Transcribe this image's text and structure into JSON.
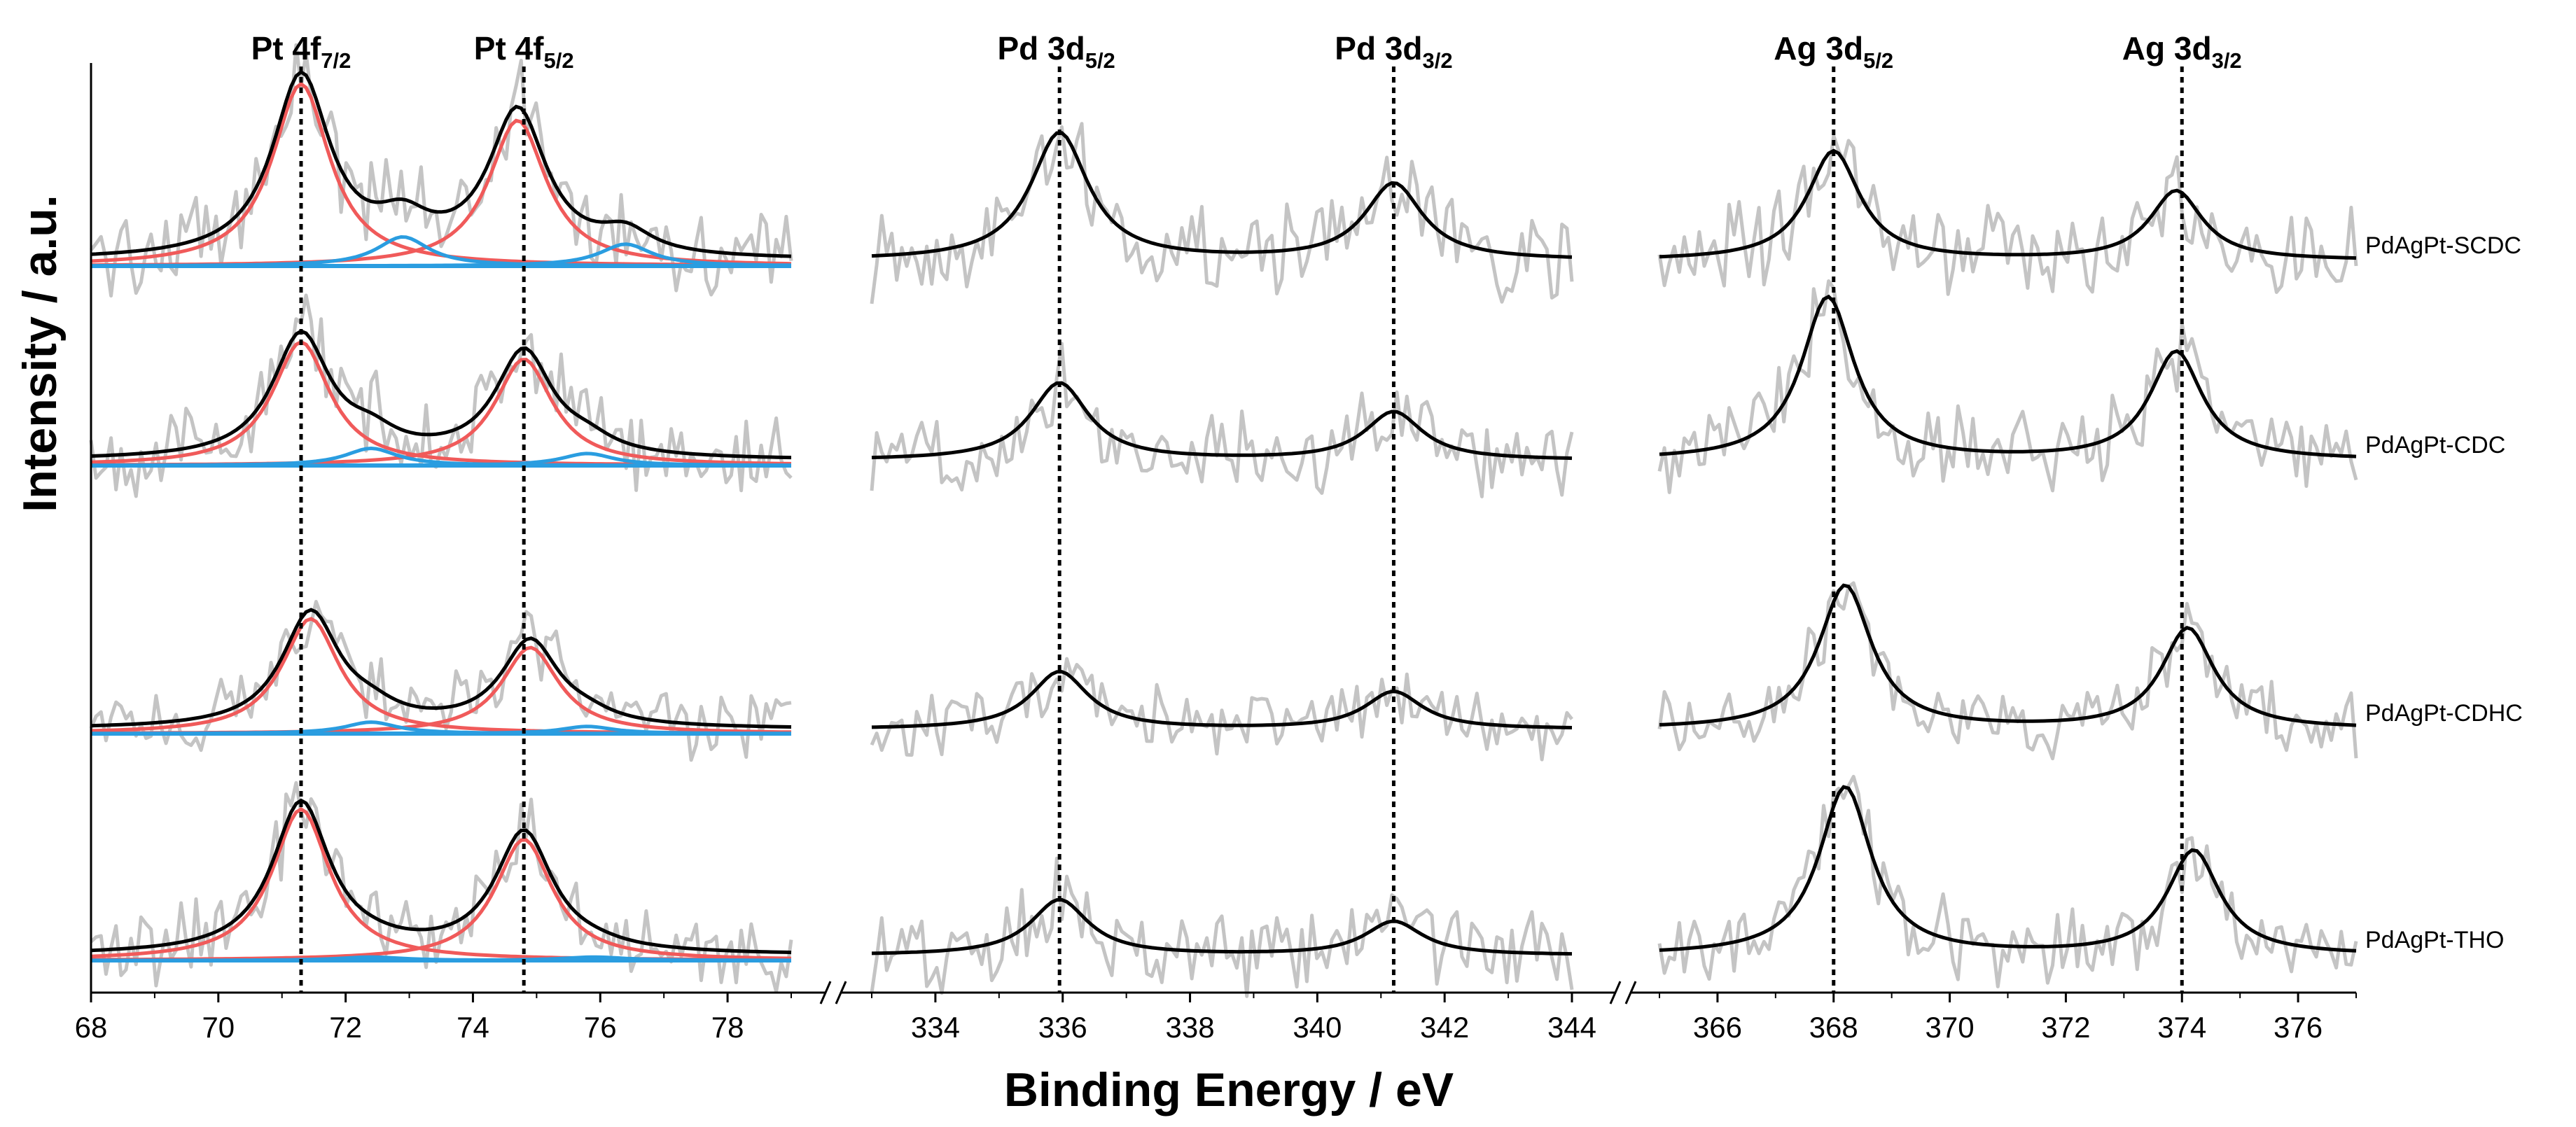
{
  "chart_data": {
    "type": "line",
    "title": "",
    "xlabel": "Binding Energy / eV",
    "ylabel": "Intensity / a.u.",
    "colors": {
      "raw": "#c4c4c4",
      "envelope": "#000000",
      "main_component": "#f05a5a",
      "minor_component": "#2a9de0",
      "baseline": "#2a9de0"
    },
    "samples": [
      {
        "name": "PdAgPt-SCDC"
      },
      {
        "name": "PdAgPt-CDC"
      },
      {
        "name": "PdAgPt-CDHC"
      },
      {
        "name": "PdAgPt-THO"
      }
    ],
    "panels": [
      {
        "id": "pt4f",
        "xlim": [
          68,
          79
        ],
        "xticks": [
          68,
          70,
          72,
          74,
          76,
          78
        ],
        "peak_labels": [
          {
            "main": "Pt 4f",
            "sub": "7/2",
            "x": 71.3
          },
          {
            "main": "Pt 4f",
            "sub": "5/2",
            "x": 74.8
          }
        ],
        "reference_lines": [
          71.3,
          74.8
        ],
        "fit_components": true,
        "spectra": [
          {
            "sample": "PdAgPt-SCDC",
            "peaks": [
              {
                "center": 71.3,
                "height": 1.0,
                "width": 0.55,
                "type": "main"
              },
              {
                "center": 74.7,
                "height": 0.8,
                "width": 0.55,
                "type": "main"
              },
              {
                "center": 72.9,
                "height": 0.16,
                "width": 0.5,
                "type": "minor"
              },
              {
                "center": 76.4,
                "height": 0.12,
                "width": 0.5,
                "type": "minor"
              }
            ]
          },
          {
            "sample": "PdAgPt-CDC",
            "peaks": [
              {
                "center": 71.3,
                "height": 0.72,
                "width": 0.55,
                "type": "main"
              },
              {
                "center": 74.8,
                "height": 0.62,
                "width": 0.55,
                "type": "main"
              },
              {
                "center": 72.4,
                "height": 0.1,
                "width": 0.5,
                "type": "minor"
              },
              {
                "center": 75.8,
                "height": 0.07,
                "width": 0.5,
                "type": "minor"
              }
            ]
          },
          {
            "sample": "PdAgPt-CDHC",
            "peaks": [
              {
                "center": 71.45,
                "height": 0.8,
                "width": 0.55,
                "type": "main"
              },
              {
                "center": 74.9,
                "height": 0.6,
                "width": 0.55,
                "type": "main"
              },
              {
                "center": 72.4,
                "height": 0.08,
                "width": 0.5,
                "type": "minor"
              },
              {
                "center": 75.8,
                "height": 0.05,
                "width": 0.5,
                "type": "minor"
              }
            ]
          },
          {
            "sample": "PdAgPt-THO",
            "peaks": [
              {
                "center": 71.3,
                "height": 0.9,
                "width": 0.55,
                "type": "main"
              },
              {
                "center": 74.8,
                "height": 0.72,
                "width": 0.55,
                "type": "main"
              },
              {
                "center": 72.4,
                "height": 0.02,
                "width": 0.6,
                "type": "minor"
              },
              {
                "center": 75.9,
                "height": 0.02,
                "width": 0.6,
                "type": "minor"
              }
            ]
          }
        ]
      },
      {
        "id": "pd3d",
        "xlim": [
          333,
          344
        ],
        "xticks": [
          334,
          336,
          338,
          340,
          342,
          344
        ],
        "peak_labels": [
          {
            "main": "Pd 3d",
            "sub": "5/2",
            "x": 335.9
          },
          {
            "main": "Pd 3d",
            "sub": "3/2",
            "x": 341.2
          }
        ],
        "reference_lines": [
          335.95,
          341.2
        ],
        "fit_components": false,
        "spectra": [
          {
            "sample": "PdAgPt-SCDC",
            "peaks": [
              {
                "center": 335.95,
                "height": 0.7,
                "width": 0.55
              },
              {
                "center": 341.2,
                "height": 0.42,
                "width": 0.55
              }
            ]
          },
          {
            "sample": "PdAgPt-CDC",
            "peaks": [
              {
                "center": 335.95,
                "height": 0.45,
                "width": 0.55
              },
              {
                "center": 341.2,
                "height": 0.28,
                "width": 0.55
              }
            ]
          },
          {
            "sample": "PdAgPt-CDHC",
            "peaks": [
              {
                "center": 335.95,
                "height": 0.4,
                "width": 0.55
              },
              {
                "center": 341.2,
                "height": 0.26,
                "width": 0.55
              }
            ]
          },
          {
            "sample": "PdAgPt-THO",
            "peaks": [
              {
                "center": 335.95,
                "height": 0.33,
                "width": 0.55
              },
              {
                "center": 341.2,
                "height": 0.2,
                "width": 0.55
              }
            ]
          }
        ]
      },
      {
        "id": "ag3d",
        "xlim": [
          365,
          377
        ],
        "xticks": [
          366,
          368,
          370,
          372,
          374,
          376
        ],
        "peak_labels": [
          {
            "main": "Ag 3d",
            "sub": "5/2",
            "x": 368.0
          },
          {
            "main": "Ag 3d",
            "sub": "3/2",
            "x": 374.0
          }
        ],
        "reference_lines": [
          368.0,
          374.0
        ],
        "fit_components": false,
        "spectra": [
          {
            "sample": "PdAgPt-SCDC",
            "peaks": [
              {
                "center": 368.0,
                "height": 0.6,
                "width": 0.55
              },
              {
                "center": 373.9,
                "height": 0.38,
                "width": 0.55
              }
            ]
          },
          {
            "sample": "PdAgPt-CDC",
            "peaks": [
              {
                "center": 367.9,
                "height": 0.95,
                "width": 0.55
              },
              {
                "center": 373.9,
                "height": 0.63,
                "width": 0.55
              }
            ]
          },
          {
            "sample": "PdAgPt-CDHC",
            "peaks": [
              {
                "center": 368.2,
                "height": 1.0,
                "width": 0.55
              },
              {
                "center": 374.1,
                "height": 0.7,
                "width": 0.55
              }
            ]
          },
          {
            "sample": "PdAgPt-THO",
            "peaks": [
              {
                "center": 368.2,
                "height": 1.0,
                "width": 0.55
              },
              {
                "center": 374.2,
                "height": 0.62,
                "width": 0.55
              }
            ]
          }
        ]
      }
    ]
  }
}
